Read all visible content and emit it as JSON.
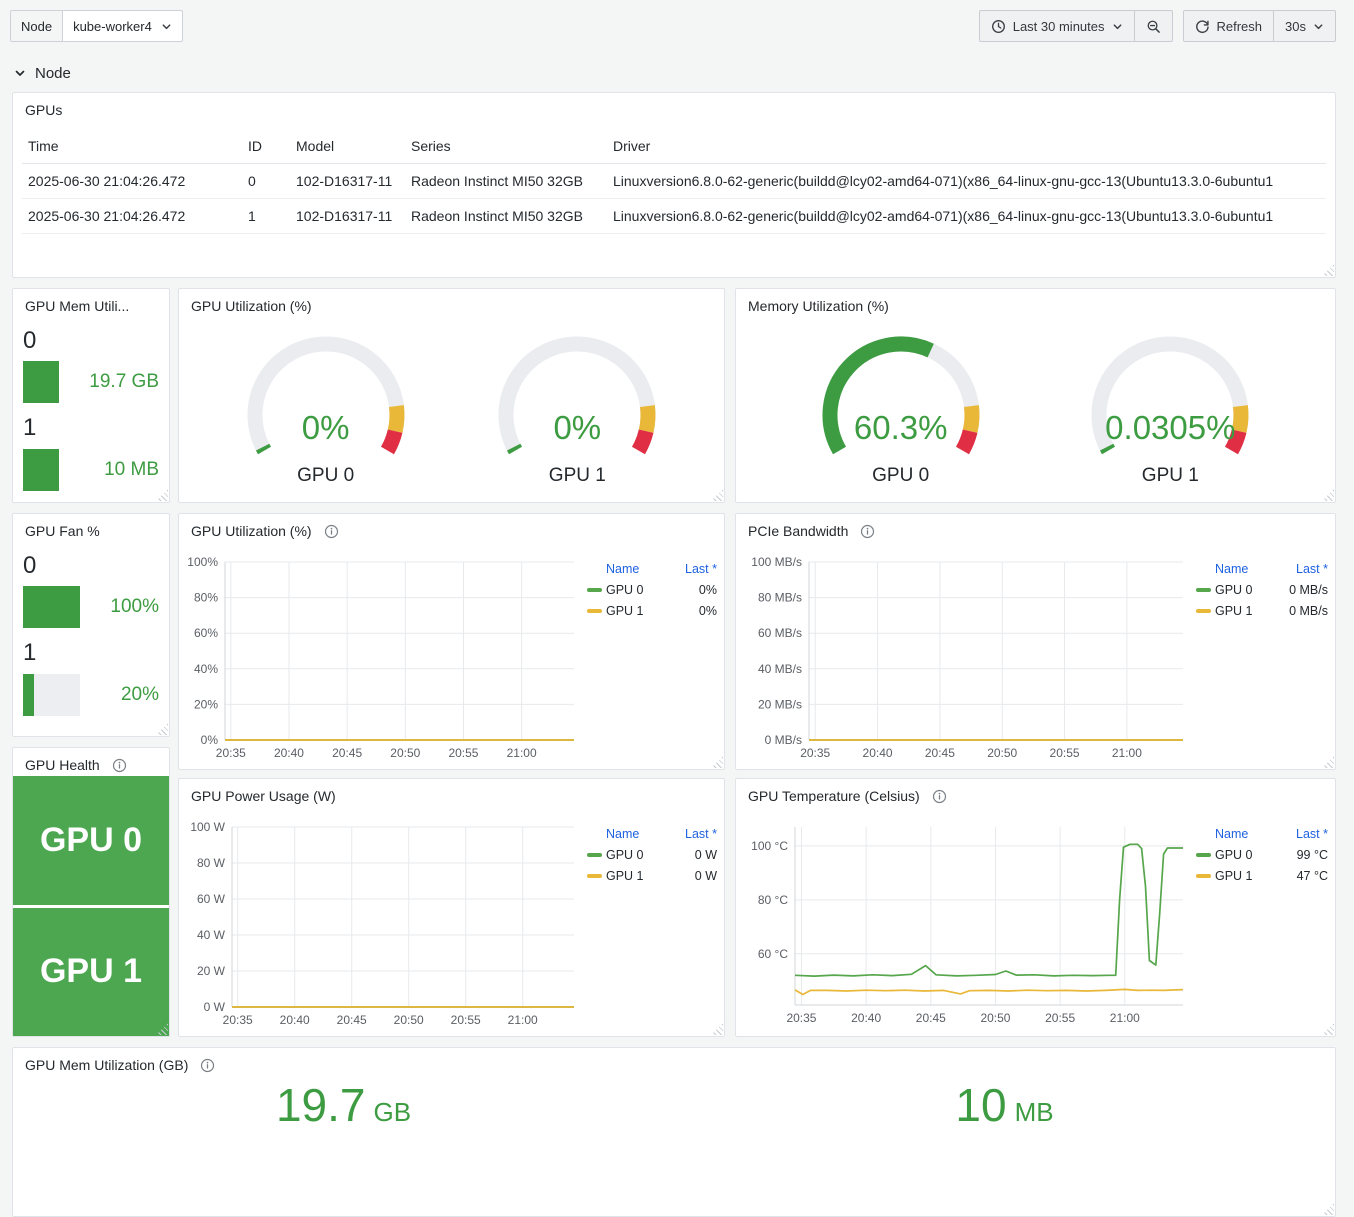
{
  "toolbar": {
    "node_label": "Node",
    "node_value": "kube-worker4",
    "time_range_label": "Last 30 minutes",
    "refresh_label": "Refresh",
    "refresh_interval": "30s"
  },
  "section": {
    "title": "Node"
  },
  "legend_headers": {
    "name": "Name",
    "last": "Last *"
  },
  "colors": {
    "green": "#3D9C41",
    "series_green": "#56A64B",
    "yellow": "#EAB839",
    "red": "#E02F44",
    "gauge_track": "#EAECEF",
    "health_green": "#4CA750",
    "link": "#1F62E0"
  },
  "gpus_table": {
    "title": "GPUs",
    "columns": {
      "time": "Time",
      "id": "ID",
      "model": "Model",
      "series": "Series",
      "driver": "Driver"
    },
    "rows": [
      {
        "time": "2025-06-30 21:04:26.472",
        "id": "0",
        "model": "102-D16317-11",
        "series": "Radeon Instinct MI50 32GB",
        "driver": "Linuxversion6.8.0-62-generic(buildd@lcy02-amd64-071)(x86_64-linux-gnu-gcc-13(Ubuntu13.3.0-6ubuntu1"
      },
      {
        "time": "2025-06-30 21:04:26.472",
        "id": "1",
        "model": "102-D16317-11",
        "series": "Radeon Instinct MI50 32GB",
        "driver": "Linuxversion6.8.0-62-generic(buildd@lcy02-amd64-071)(x86_64-linux-gnu-gcc-13(Ubuntu13.3.0-6ubuntu1"
      }
    ]
  },
  "gpu_mem_bar": {
    "title": "GPU Mem Utili...",
    "items": [
      {
        "label": "0",
        "value": "19.7 GB",
        "percent": 100
      },
      {
        "label": "1",
        "value": "10 MB",
        "percent": 100
      }
    ]
  },
  "gpu_util_gauge_panel": {
    "title": "GPU Utilization (%)",
    "gauges": [
      {
        "value": "0%",
        "label": "GPU 0",
        "percent": 0
      },
      {
        "value": "0%",
        "label": "GPU 1",
        "percent": 0
      }
    ]
  },
  "mem_util_gauge_panel": {
    "title": "Memory Utilization (%)",
    "gauges": [
      {
        "value": "60.3%",
        "label": "GPU 0",
        "percent": 60.3
      },
      {
        "value": "0.0305%",
        "label": "GPU 1",
        "percent": 0.0305
      }
    ]
  },
  "gpu_fan_panel": {
    "title": "GPU Fan %",
    "items": [
      {
        "label": "0",
        "value": "100%",
        "percent": 100
      },
      {
        "label": "1",
        "value": "20%",
        "percent": 20
      }
    ]
  },
  "gpu_health_panel": {
    "title": "GPU Health",
    "items": [
      {
        "label": "GPU 0"
      },
      {
        "label": "GPU 1"
      }
    ]
  },
  "gpu_mem_stat_panel": {
    "title": "GPU Mem Utilization (GB)",
    "stats": [
      {
        "value": "19.7",
        "unit": "GB"
      },
      {
        "value": "10",
        "unit": "MB"
      }
    ]
  },
  "chart_data": {
    "gpu_utilization_ts": {
      "type": "line",
      "title": "GPU Utilization (%)",
      "x_range": [
        34.5,
        64.5
      ],
      "y_range": [
        0,
        100
      ],
      "x_ticks": [
        {
          "v": 35,
          "label": "20:35"
        },
        {
          "v": 40,
          "label": "20:40"
        },
        {
          "v": 45,
          "label": "20:45"
        },
        {
          "v": 50,
          "label": "20:50"
        },
        {
          "v": 55,
          "label": "20:55"
        },
        {
          "v": 60,
          "label": "21:00"
        }
      ],
      "y_ticks": [
        {
          "v": 0,
          "label": "0%"
        },
        {
          "v": 20,
          "label": "20%"
        },
        {
          "v": 40,
          "label": "40%"
        },
        {
          "v": 60,
          "label": "60%"
        },
        {
          "v": 80,
          "label": "80%"
        },
        {
          "v": 100,
          "label": "100%"
        }
      ],
      "legend_position": "right",
      "series": [
        {
          "name": "GPU 0",
          "color": "series_green",
          "last": "0%",
          "points": [
            [
              34.5,
              0
            ],
            [
              64.5,
              0
            ]
          ]
        },
        {
          "name": "GPU 1",
          "color": "yellow",
          "last": "0%",
          "points": [
            [
              34.5,
              0
            ],
            [
              64.5,
              0
            ]
          ]
        }
      ]
    },
    "pcie_bandwidth_ts": {
      "type": "line",
      "title": "PCIe Bandwidth",
      "x_range": [
        34.5,
        64.5
      ],
      "y_range": [
        0,
        100
      ],
      "x_ticks": [
        {
          "v": 35,
          "label": "20:35"
        },
        {
          "v": 40,
          "label": "20:40"
        },
        {
          "v": 45,
          "label": "20:45"
        },
        {
          "v": 50,
          "label": "20:50"
        },
        {
          "v": 55,
          "label": "20:55"
        },
        {
          "v": 60,
          "label": "21:00"
        }
      ],
      "y_ticks": [
        {
          "v": 0,
          "label": "0 MB/s"
        },
        {
          "v": 20,
          "label": "20 MB/s"
        },
        {
          "v": 40,
          "label": "40 MB/s"
        },
        {
          "v": 60,
          "label": "60 MB/s"
        },
        {
          "v": 80,
          "label": "80 MB/s"
        },
        {
          "v": 100,
          "label": "100 MB/s"
        }
      ],
      "legend_position": "right",
      "series": [
        {
          "name": "GPU 0",
          "color": "series_green",
          "last": "0 MB/s",
          "points": [
            [
              34.5,
              0
            ],
            [
              64.5,
              0
            ]
          ]
        },
        {
          "name": "GPU 1",
          "color": "yellow",
          "last": "0 MB/s",
          "points": [
            [
              34.5,
              0
            ],
            [
              64.5,
              0
            ]
          ]
        }
      ]
    },
    "gpu_power_ts": {
      "type": "line",
      "title": "GPU Power Usage (W)",
      "x_range": [
        34.5,
        64.5
      ],
      "y_range": [
        0,
        100
      ],
      "x_ticks": [
        {
          "v": 35,
          "label": "20:35"
        },
        {
          "v": 40,
          "label": "20:40"
        },
        {
          "v": 45,
          "label": "20:45"
        },
        {
          "v": 50,
          "label": "20:50"
        },
        {
          "v": 55,
          "label": "20:55"
        },
        {
          "v": 60,
          "label": "21:00"
        }
      ],
      "y_ticks": [
        {
          "v": 0,
          "label": "0 W"
        },
        {
          "v": 20,
          "label": "20 W"
        },
        {
          "v": 40,
          "label": "40 W"
        },
        {
          "v": 60,
          "label": "60 W"
        },
        {
          "v": 80,
          "label": "80 W"
        },
        {
          "v": 100,
          "label": "100 W"
        }
      ],
      "legend_position": "right",
      "series": [
        {
          "name": "GPU 0",
          "color": "series_green",
          "last": "0 W",
          "points": [
            [
              34.5,
              0
            ],
            [
              64.5,
              0
            ]
          ]
        },
        {
          "name": "GPU 1",
          "color": "yellow",
          "last": "0 W",
          "points": [
            [
              34.5,
              0
            ],
            [
              64.5,
              0
            ]
          ]
        }
      ]
    },
    "gpu_temperature_ts": {
      "type": "line",
      "title": "GPU Temperature (Celsius)",
      "x_range": [
        34.5,
        64.5
      ],
      "y_range": [
        41,
        107
      ],
      "x_ticks": [
        {
          "v": 35,
          "label": "20:35"
        },
        {
          "v": 40,
          "label": "20:40"
        },
        {
          "v": 45,
          "label": "20:45"
        },
        {
          "v": 50,
          "label": "20:50"
        },
        {
          "v": 55,
          "label": "20:55"
        },
        {
          "v": 60,
          "label": "21:00"
        }
      ],
      "y_ticks": [
        {
          "v": 60,
          "label": "60 °C"
        },
        {
          "v": 80,
          "label": "80 °C"
        },
        {
          "v": 100,
          "label": "100 °C"
        }
      ],
      "legend_position": "right",
      "series": [
        {
          "name": "GPU 0",
          "color": "series_green",
          "last": "99 °C",
          "points": [
            [
              34.5,
              52
            ],
            [
              36,
              51.7
            ],
            [
              37.5,
              52.1
            ],
            [
              39,
              51.8
            ],
            [
              40.5,
              52.2
            ],
            [
              42,
              51.9
            ],
            [
              43.5,
              52.4
            ],
            [
              44.6,
              55.6
            ],
            [
              45.4,
              52.2
            ],
            [
              47,
              51.8
            ],
            [
              48.5,
              52
            ],
            [
              50,
              52.3
            ],
            [
              50.8,
              53.6
            ],
            [
              51.6,
              52.1
            ],
            [
              53,
              52.2
            ],
            [
              54.5,
              51.8
            ],
            [
              56,
              52
            ],
            [
              57.5,
              51.9
            ],
            [
              58.8,
              52
            ],
            [
              59.3,
              52
            ],
            [
              59.6,
              80
            ],
            [
              59.9,
              99.5
            ],
            [
              60.4,
              100.6
            ],
            [
              61,
              100.6
            ],
            [
              61.3,
              99
            ],
            [
              61.6,
              85
            ],
            [
              61.9,
              57.5
            ],
            [
              62.4,
              55.8
            ],
            [
              62.7,
              75
            ],
            [
              63,
              97
            ],
            [
              63.3,
              99.2
            ],
            [
              64.5,
              99.2
            ]
          ]
        },
        {
          "name": "GPU 1",
          "color": "yellow",
          "last": "47 °C",
          "points": [
            [
              34.5,
              46.6
            ],
            [
              35.1,
              44.9
            ],
            [
              35.7,
              46.4
            ],
            [
              37,
              46.4
            ],
            [
              38.5,
              46.2
            ],
            [
              40,
              46.5
            ],
            [
              41.5,
              46.3
            ],
            [
              43,
              46.5
            ],
            [
              44.5,
              46.2
            ],
            [
              46,
              46.4
            ],
            [
              47.3,
              45.1
            ],
            [
              48,
              46.3
            ],
            [
              49.5,
              46.4
            ],
            [
              51,
              46.2
            ],
            [
              52.5,
              46.5
            ],
            [
              54,
              46.3
            ],
            [
              55.5,
              46.4
            ],
            [
              57,
              46.2
            ],
            [
              58.5,
              46.4
            ],
            [
              60,
              46.8
            ],
            [
              61,
              46.4
            ],
            [
              62,
              46.5
            ],
            [
              63,
              46.4
            ],
            [
              64.5,
              46.7
            ]
          ]
        }
      ]
    }
  }
}
